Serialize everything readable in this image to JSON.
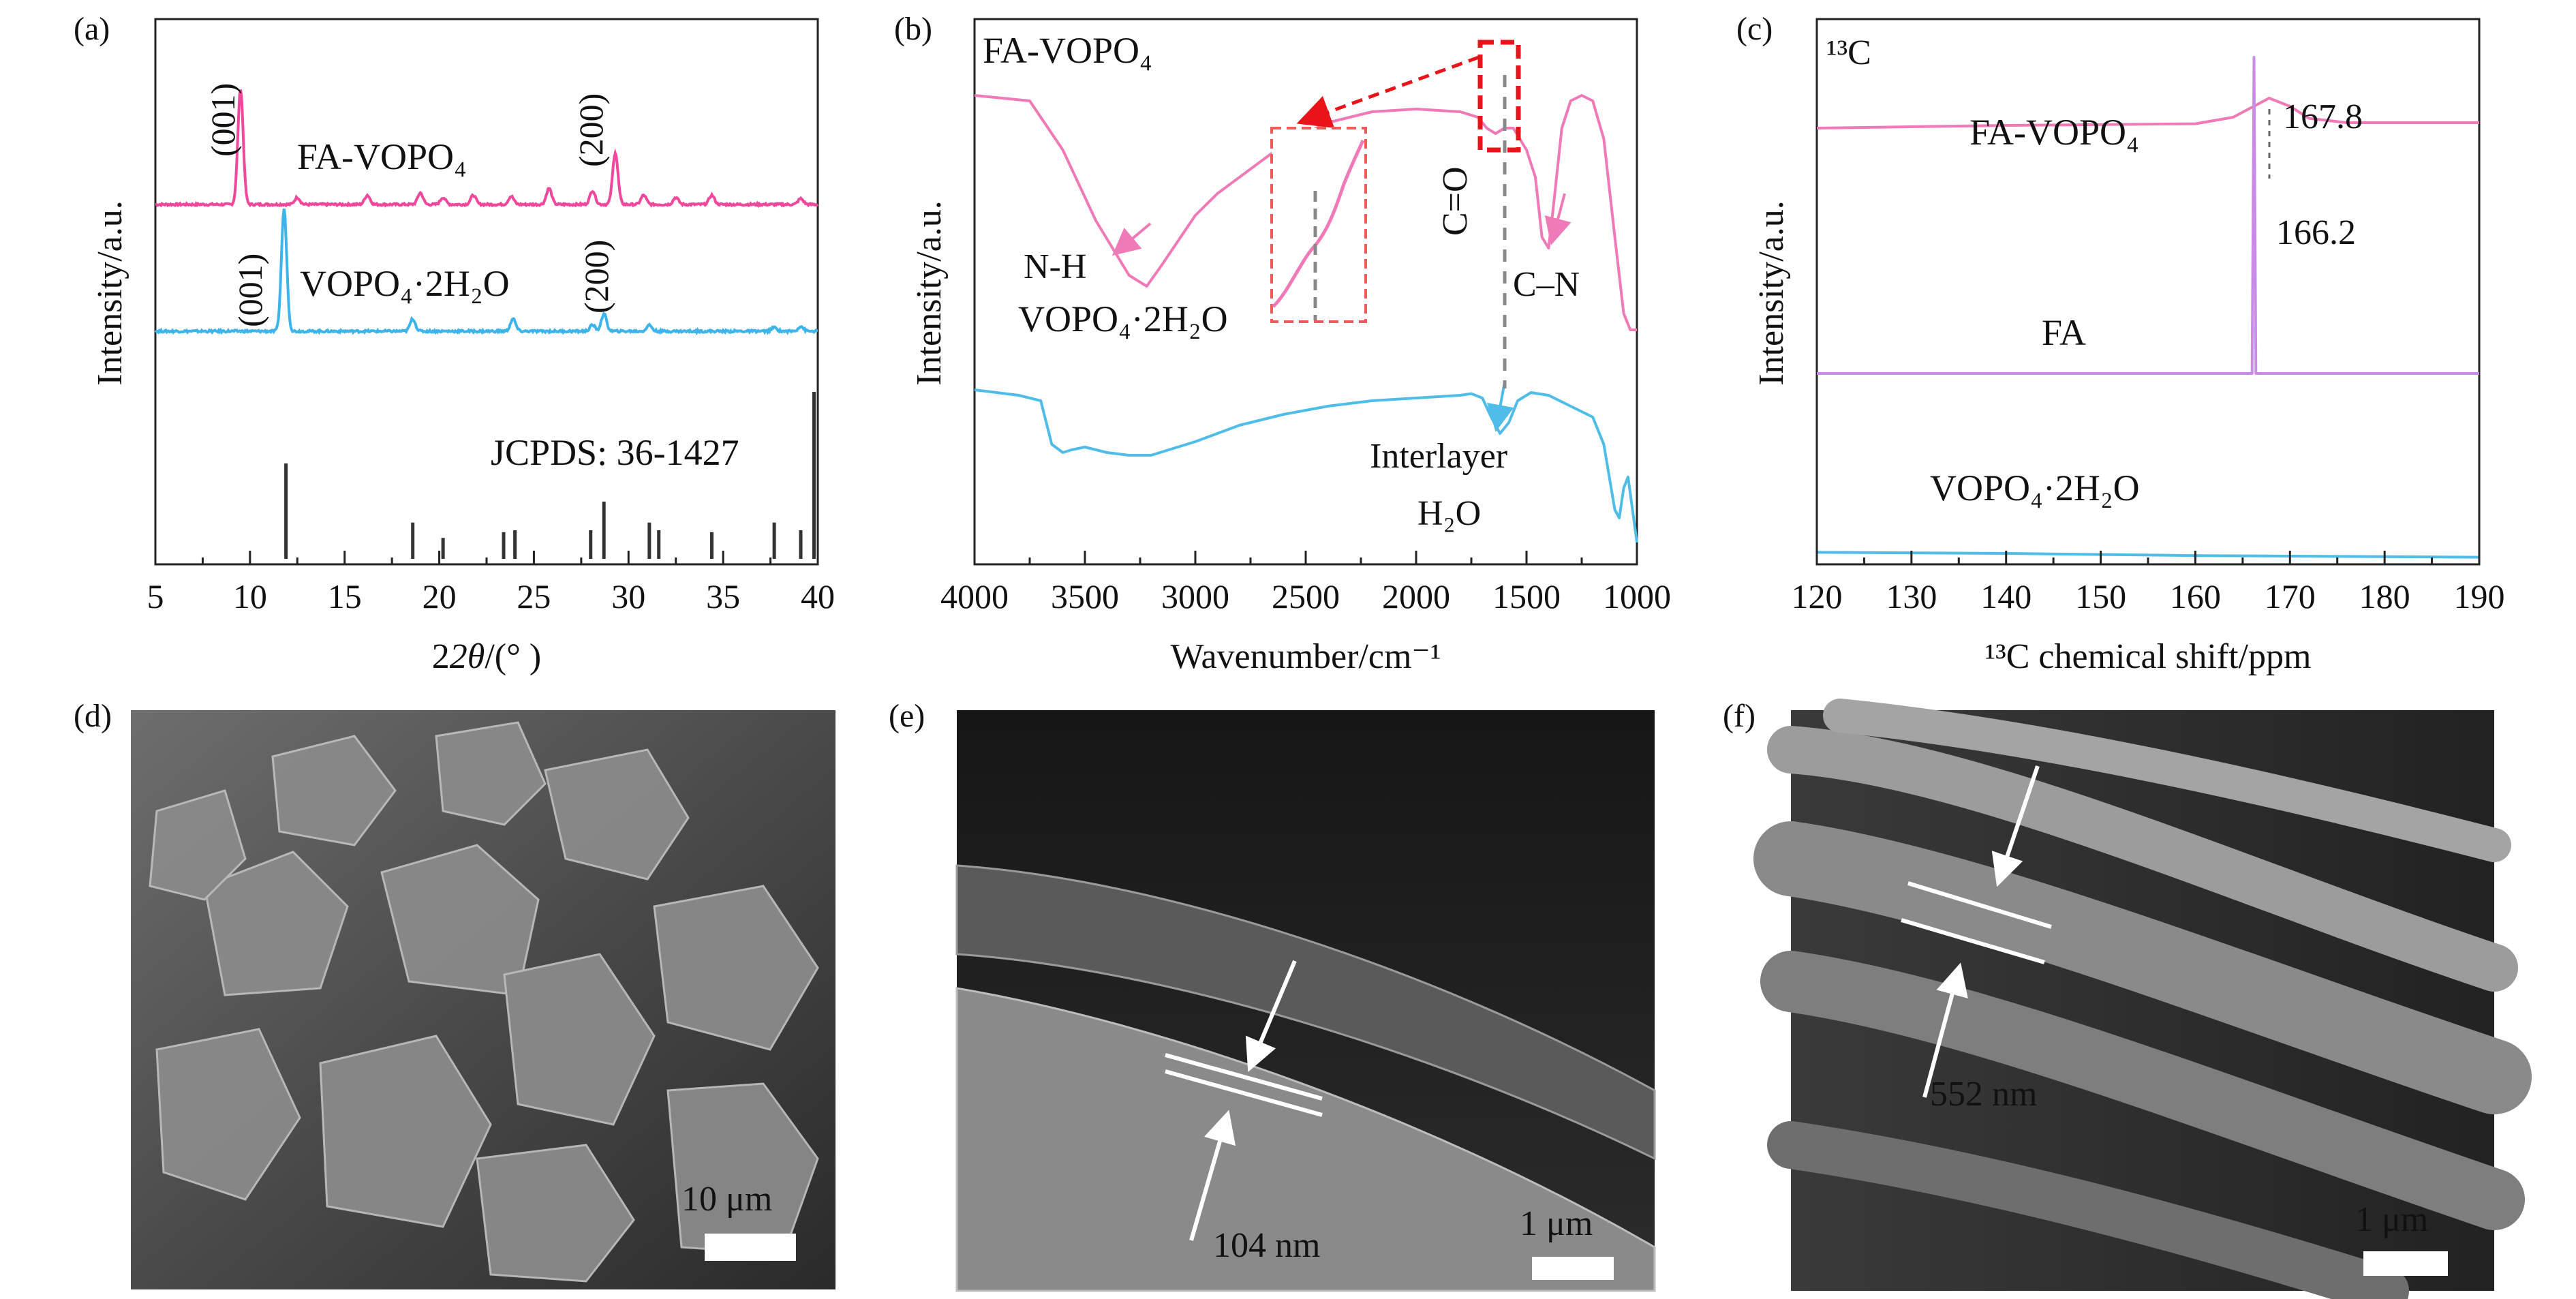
{
  "chart_data": [
    {
      "type": "line",
      "panel_label": "(a)",
      "xlabel_var": "2θ",
      "xlabel_unit": "/(° )",
      "ylabel": "Intensity/a.u.",
      "xlim": [
        5,
        40
      ],
      "xticks": [
        "5",
        "10",
        "15",
        "20",
        "25",
        "30",
        "35",
        "40"
      ],
      "series": [
        {
          "name": "FA-VOPO₄",
          "color": "#f0489c",
          "peaks": [
            [
              9.5,
              1.0
            ],
            [
              12.5,
              0.06
            ],
            [
              16.2,
              0.08
            ],
            [
              19.0,
              0.1
            ],
            [
              20.2,
              0.06
            ],
            [
              21.8,
              0.08
            ],
            [
              23.8,
              0.07
            ],
            [
              25.8,
              0.14
            ],
            [
              28.1,
              0.12
            ],
            [
              29.3,
              0.45
            ],
            [
              30.8,
              0.08
            ],
            [
              32.5,
              0.06
            ],
            [
              34.4,
              0.08
            ],
            [
              39.1,
              0.05
            ]
          ]
        },
        {
          "name": "VOPO₄·2H₂O",
          "color": "#3db4ea",
          "peaks": [
            [
              11.8,
              1.0
            ],
            [
              18.6,
              0.1
            ],
            [
              23.9,
              0.1
            ],
            [
              28.1,
              0.05
            ],
            [
              28.7,
              0.14
            ],
            [
              31.1,
              0.05
            ],
            [
              37.7,
              0.03
            ],
            [
              39.1,
              0.04
            ]
          ]
        },
        {
          "name": "JCPDS: 36-1427",
          "color": "#333333",
          "sticks": [
            [
              11.9,
              1.0
            ],
            [
              18.6,
              0.38
            ],
            [
              20.2,
              0.22
            ],
            [
              23.4,
              0.28
            ],
            [
              24.0,
              0.3
            ],
            [
              28.0,
              0.3
            ],
            [
              28.7,
              0.6
            ],
            [
              31.1,
              0.38
            ],
            [
              31.6,
              0.3
            ],
            [
              34.4,
              0.28
            ],
            [
              37.7,
              0.38
            ],
            [
              39.1,
              0.3
            ],
            [
              39.8,
              1.75
            ]
          ]
        }
      ],
      "annotations": [
        "(001)",
        "(200)",
        "(001)",
        "(200)"
      ]
    },
    {
      "type": "line",
      "panel_label": "(b)",
      "xlabel": "Wavenumber/cm⁻¹",
      "ylabel": "Intensity/a.u.",
      "xlim": [
        4000,
        1000
      ],
      "xticks": [
        "4000",
        "3500",
        "3000",
        "2500",
        "2000",
        "1500",
        "1000"
      ],
      "series": [
        {
          "name": "FA-VOPO₄",
          "color": "#f07ab7",
          "points": [
            [
              4000,
              0.86
            ],
            [
              3750,
              0.85
            ],
            [
              3600,
              0.76
            ],
            [
              3450,
              0.63
            ],
            [
              3300,
              0.53
            ],
            [
              3220,
              0.51
            ],
            [
              3150,
              0.55
            ],
            [
              3000,
              0.64
            ],
            [
              2900,
              0.68
            ],
            [
              2800,
              0.71
            ],
            [
              2600,
              0.77
            ],
            [
              2400,
              0.81
            ],
            [
              2200,
              0.83
            ],
            [
              2000,
              0.835
            ],
            [
              1800,
              0.83
            ],
            [
              1720,
              0.82
            ],
            [
              1680,
              0.8
            ],
            [
              1640,
              0.79
            ],
            [
              1600,
              0.8
            ],
            [
              1560,
              0.8
            ],
            [
              1500,
              0.76
            ],
            [
              1460,
              0.71
            ],
            [
              1430,
              0.6
            ],
            [
              1400,
              0.58
            ],
            [
              1380,
              0.65
            ],
            [
              1340,
              0.8
            ],
            [
              1300,
              0.85
            ],
            [
              1250,
              0.86
            ],
            [
              1200,
              0.85
            ],
            [
              1150,
              0.78
            ],
            [
              1100,
              0.6
            ],
            [
              1060,
              0.46
            ],
            [
              1030,
              0.43
            ],
            [
              1000,
              0.43
            ]
          ]
        },
        {
          "name": "VOPO₄·2H₂O",
          "color": "#4fbde8",
          "points": [
            [
              4000,
              0.32
            ],
            [
              3800,
              0.31
            ],
            [
              3700,
              0.3
            ],
            [
              3650,
              0.22
            ],
            [
              3600,
              0.205
            ],
            [
              3560,
              0.21
            ],
            [
              3500,
              0.215
            ],
            [
              3400,
              0.205
            ],
            [
              3300,
              0.2
            ],
            [
              3200,
              0.2
            ],
            [
              3000,
              0.225
            ],
            [
              2800,
              0.255
            ],
            [
              2600,
              0.275
            ],
            [
              2400,
              0.29
            ],
            [
              2200,
              0.3
            ],
            [
              2000,
              0.305
            ],
            [
              1800,
              0.31
            ],
            [
              1750,
              0.313
            ],
            [
              1700,
              0.305
            ],
            [
              1660,
              0.27
            ],
            [
              1620,
              0.24
            ],
            [
              1580,
              0.26
            ],
            [
              1540,
              0.3
            ],
            [
              1480,
              0.315
            ],
            [
              1400,
              0.31
            ],
            [
              1300,
              0.29
            ],
            [
              1200,
              0.27
            ],
            [
              1150,
              0.22
            ],
            [
              1100,
              0.1
            ],
            [
              1080,
              0.085
            ],
            [
              1060,
              0.14
            ],
            [
              1040,
              0.16
            ],
            [
              1020,
              0.1
            ],
            [
              1000,
              0.04
            ]
          ]
        }
      ],
      "annotations": [
        "N-H",
        "C=O",
        "C–N",
        "Interlayer",
        "H₂O"
      ]
    },
    {
      "type": "line",
      "panel_label": "(c)",
      "title": "¹³C",
      "xlabel": "¹³C chemical shift/ppm",
      "ylabel": "Intensity/a.u.",
      "xlim": [
        120,
        190
      ],
      "xticks": [
        "120",
        "130",
        "140",
        "150",
        "160",
        "170",
        "180",
        "190"
      ],
      "series": [
        {
          "name": "FA-VOPO₄",
          "color": "#f07ab7",
          "peak_label": "167.8",
          "points": [
            [
              120,
              0.8
            ],
            [
              140,
              0.805
            ],
            [
              160,
              0.808
            ],
            [
              164,
              0.82
            ],
            [
              167.8,
              0.855
            ],
            [
              170,
              0.84
            ],
            [
              172,
              0.818
            ],
            [
              176,
              0.81
            ],
            [
              190,
              0.81
            ]
          ]
        },
        {
          "name": "FA",
          "color": "#c98ce6",
          "peak_label": "166.2",
          "points": [
            [
              120,
              0.35
            ],
            [
              166.0,
              0.35
            ],
            [
              166.2,
              0.93
            ],
            [
              166.4,
              0.35
            ],
            [
              190,
              0.35
            ]
          ]
        },
        {
          "name": "VOPO₄·2H₂O",
          "color": "#4fbde8",
          "points": [
            [
              120,
              0.022
            ],
            [
              140,
              0.02
            ],
            [
              150,
              0.018
            ],
            [
              160,
              0.016
            ],
            [
              190,
              0.013
            ]
          ]
        }
      ]
    }
  ],
  "sem_panels": [
    {
      "panel_label": "(d)",
      "scale_label": "10 μm"
    },
    {
      "panel_label": "(e)",
      "scale_label": "1 μm",
      "thickness_label": "104 nm"
    },
    {
      "panel_label": "(f)",
      "scale_label": "1 μm",
      "thickness_label": "552 nm"
    }
  ]
}
